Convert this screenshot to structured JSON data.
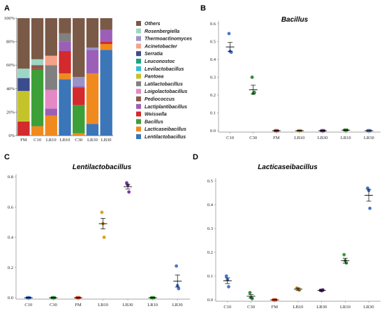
{
  "chart_data": [
    {
      "panel": "A",
      "type": "bar",
      "stacked": true,
      "categories": [
        "FM",
        "C10",
        "LR10",
        "LB10",
        "C30",
        "LR30",
        "LB30"
      ],
      "ylim": [
        0,
        100
      ],
      "yticks": [
        "0%",
        "20%",
        "40%",
        "60%",
        "80%",
        "100%"
      ],
      "legend_position": "right",
      "series": [
        {
          "name": "Lentilactobacillus",
          "color": "#3a76b8",
          "values": [
            0,
            0,
            0,
            48,
            0,
            10,
            73
          ]
        },
        {
          "name": "Lacticaseibacillus",
          "color": "#f08a1e",
          "values": [
            0,
            8,
            17,
            5,
            2,
            43,
            5
          ]
        },
        {
          "name": "Bacillus",
          "color": "#3c9f38",
          "values": [
            0,
            48,
            0,
            0,
            24,
            0,
            0
          ]
        },
        {
          "name": "Weissella",
          "color": "#d22a2d",
          "values": [
            12,
            1,
            0,
            19,
            15,
            0,
            2
          ]
        },
        {
          "name": "Lactiplantibacillus",
          "color": "#9c5fb8",
          "values": [
            0,
            0,
            6,
            8,
            1,
            20,
            10
          ]
        },
        {
          "name": "Pediococcus",
          "color": "#8a5a4a",
          "values": [
            0,
            3,
            0,
            0,
            0,
            0,
            0
          ]
        },
        {
          "name": "Loigolactobacillus",
          "color": "#e489c4",
          "values": [
            0,
            0,
            16,
            0,
            0,
            0,
            0
          ]
        },
        {
          "name": "Latilactobacillus",
          "color": "#808080",
          "values": [
            0,
            0,
            21,
            7,
            0,
            0,
            0
          ]
        },
        {
          "name": "Pantoea",
          "color": "#c4c42a",
          "values": [
            26,
            0,
            0,
            0,
            0,
            0,
            0
          ]
        },
        {
          "name": "Levilactobacillus",
          "color": "#2fc0d1",
          "values": [
            0,
            0,
            0,
            0,
            0,
            0,
            0
          ]
        },
        {
          "name": "Leuconostoc",
          "color": "#1aa37f",
          "values": [
            0,
            0,
            0,
            0,
            0,
            0,
            0
          ]
        },
        {
          "name": "Serratia",
          "color": "#3b4c8e",
          "values": [
            11,
            0,
            0,
            0,
            0,
            0,
            0
          ]
        },
        {
          "name": "Acinetobacter",
          "color": "#f5a28a",
          "values": [
            0,
            0,
            8,
            0,
            0,
            0,
            0
          ]
        },
        {
          "name": "Thermoactinomyces",
          "color": "#9a93c8",
          "values": [
            0,
            0,
            0,
            0,
            8,
            2,
            0
          ]
        },
        {
          "name": "Rosenbergiella",
          "color": "#9dd6c4",
          "values": [
            8,
            5,
            0,
            0,
            0,
            0,
            0
          ]
        },
        {
          "name": "Others",
          "color": "#7a5947",
          "values": [
            43,
            35,
            32,
            13,
            50,
            25,
            10
          ]
        }
      ]
    },
    {
      "panel": "B",
      "type": "scatter",
      "title": "Bacillus",
      "categories": [
        "C10",
        "C30",
        "FM",
        "LB10",
        "LB30",
        "LR10",
        "LR30"
      ],
      "ylim": [
        0,
        0.6
      ],
      "yticks": [
        "0.0",
        "0.1",
        "0.2",
        "0.3",
        "0.4",
        "0.5",
        "0.6"
      ],
      "colors": [
        "#4a78c8",
        "#2e8f3e",
        "#d64a2a",
        "#e0a020",
        "#7a3aa8",
        "#3a9a3a",
        "#4a78c8"
      ],
      "means": [
        0.47,
        0.23,
        0.0,
        0.0,
        0.0,
        0.003,
        0.0
      ],
      "errors": [
        0.025,
        0.025,
        0.002,
        0.002,
        0.002,
        0.002,
        0.001
      ],
      "points": [
        [
          0.545,
          0.445,
          0.44
        ],
        [
          0.3,
          0.21,
          0.215
        ],
        [
          0,
          0,
          0
        ],
        [
          0,
          0,
          0
        ],
        [
          0,
          0,
          0
        ],
        [
          0.004,
          0.003,
          0.004
        ],
        [
          0,
          0,
          0
        ]
      ]
    },
    {
      "panel": "C",
      "type": "scatter",
      "title": "Lentilactobacillus",
      "categories": [
        "C10",
        "C30",
        "FM",
        "LB10",
        "LB30",
        "LR10",
        "LR30"
      ],
      "ylim": [
        0,
        0.8
      ],
      "yticks": [
        "0.0",
        "0.2",
        "0.4",
        "0.6",
        "0.8"
      ],
      "colors": [
        "#4a78c8",
        "#2e8f3e",
        "#d64a2a",
        "#e0a020",
        "#7a3aa8",
        "#3a9a3a",
        "#4a78c8"
      ],
      "means": [
        0.0,
        0.0,
        0.0,
        0.49,
        0.735,
        0.0,
        0.11
      ],
      "errors": [
        0.002,
        0.002,
        0.002,
        0.035,
        0.015,
        0.002,
        0.04
      ],
      "points": [
        [
          0,
          0,
          0
        ],
        [
          0,
          0,
          0
        ],
        [
          0,
          0,
          0
        ],
        [
          0.565,
          0.49,
          0.4
        ],
        [
          0.76,
          0.745,
          0.7
        ],
        [
          0,
          0,
          0
        ],
        [
          0.21,
          0.08,
          0.06
        ]
      ]
    },
    {
      "panel": "D",
      "type": "scatter",
      "title": "Lacticaseibacillus",
      "categories": [
        "C10",
        "C30",
        "FM",
        "LB10",
        "LB30",
        "LR10",
        "LR30"
      ],
      "ylim": [
        0,
        0.5
      ],
      "yticks": [
        "0.0",
        "0.1",
        "0.2",
        "0.3",
        "0.4",
        "0.5"
      ],
      "colors": [
        "#4a78c8",
        "#2e8f3e",
        "#d64a2a",
        "#e0a020",
        "#7a3aa8",
        "#3a9a3a",
        "#4a78c8"
      ],
      "means": [
        0.08,
        0.015,
        0.0,
        0.045,
        0.04,
        0.165,
        0.44
      ],
      "errors": [
        0.012,
        0.007,
        0.001,
        0.005,
        0.004,
        0.01,
        0.025
      ],
      "points": [
        [
          0.1,
          0.085,
          0.055
        ],
        [
          0.03,
          0.01,
          0.005
        ],
        [
          0,
          0,
          0
        ],
        [
          0.05,
          0.045,
          0.04
        ],
        [
          0.04,
          0.038,
          0.042
        ],
        [
          0.19,
          0.165,
          0.155
        ],
        [
          0.47,
          0.46,
          0.385
        ]
      ]
    }
  ]
}
